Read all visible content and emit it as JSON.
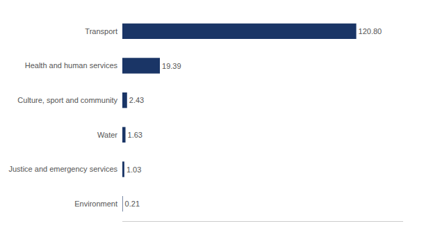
{
  "chart_data": {
    "type": "bar",
    "orientation": "horizontal",
    "categories": [
      "Transport",
      "Health and human services",
      "Culture, sport and community",
      "Water",
      "Justice and emergency services",
      "Environment"
    ],
    "values": [
      120.8,
      19.39,
      2.43,
      1.63,
      1.03,
      0.21
    ],
    "value_labels": [
      "120.80",
      "19.39",
      "2.43",
      "1.63",
      "1.03",
      "0.21"
    ],
    "data_labels": true,
    "color": "#1a3566",
    "xlim": [
      0,
      145
    ],
    "xticks": [],
    "tick_labels": "y",
    "grid": false
  }
}
